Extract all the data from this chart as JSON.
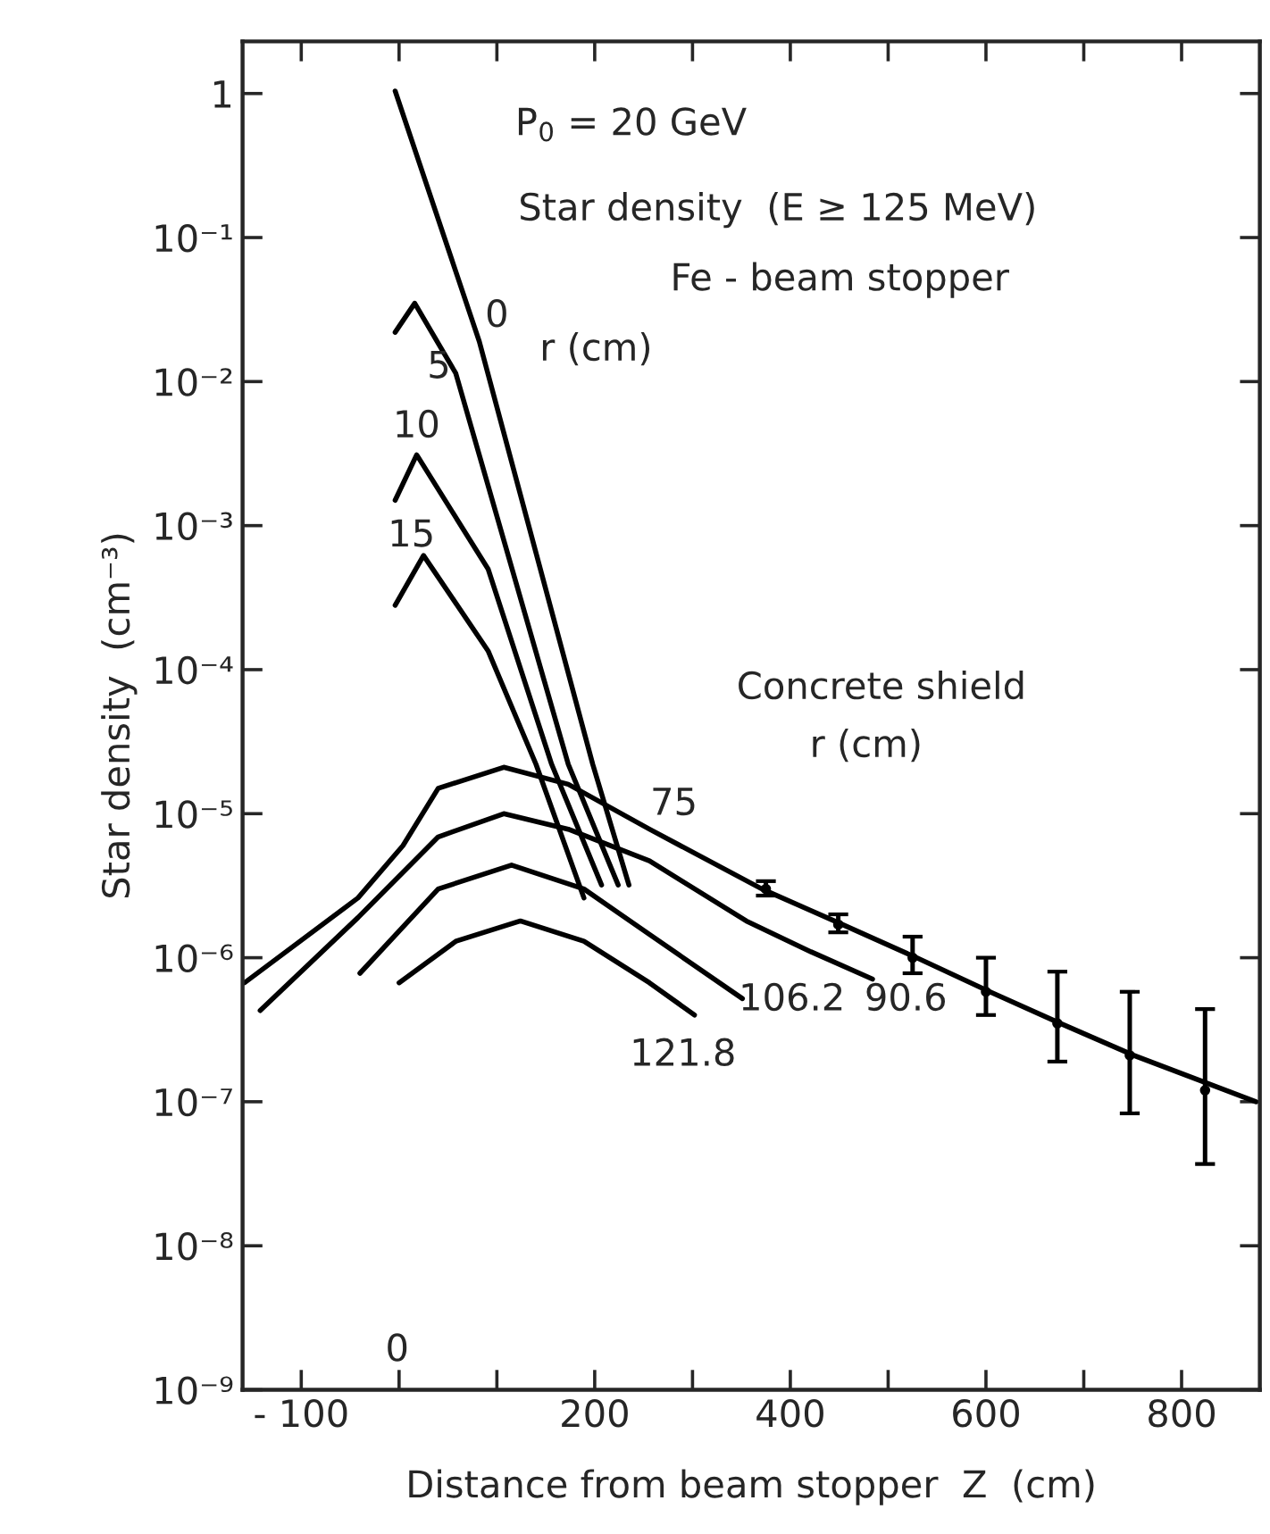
{
  "chart_data": {
    "type": "line",
    "xlabel": "Distance from beam stopper  Z  (cm)",
    "ylabel": "Star density  (cm⁻³)",
    "log": "y",
    "grid": false,
    "marker": "none",
    "line_style": "solid",
    "xlim": [
      -160,
      880
    ],
    "ylim": [
      1e-09,
      2.3
    ],
    "xticks": [
      {
        "value": -100,
        "label": "- 100"
      },
      {
        "value": 0,
        "label": null
      },
      {
        "value": 100,
        "label": null
      },
      200,
      {
        "value": 300,
        "label": null
      },
      400,
      {
        "value": 500,
        "label": null
      },
      600,
      {
        "value": 700,
        "label": null
      },
      800
    ],
    "yticks": [
      {
        "value": 1e-09,
        "label": "10⁻⁹"
      },
      {
        "value": 1e-08,
        "label": "10⁻⁸"
      },
      {
        "value": 1e-07,
        "label": "10⁻⁷"
      },
      {
        "value": 1e-06,
        "label": "10⁻⁶"
      },
      {
        "value": 1e-05,
        "label": "10⁻⁵"
      },
      {
        "value": 0.0001,
        "label": "10⁻⁴"
      },
      {
        "value": 0.001,
        "label": "10⁻³"
      },
      {
        "value": 0.01,
        "label": "10⁻²"
      },
      {
        "value": 0.1,
        "label": "10⁻¹"
      },
      {
        "value": 1,
        "label": "1"
      }
    ],
    "series": [
      {
        "color": "#000000",
        "x": [
          -4,
          82,
          198,
          235
        ],
        "values": [
          1.04,
          0.019,
          2.2e-05,
          3.2e-06
        ]
      },
      {
        "color": "#000000",
        "x": [
          -4,
          16,
          58,
          173,
          224
        ],
        "values": [
          0.022,
          0.035,
          0.0114,
          2.2e-05,
          3.2e-06
        ]
      },
      {
        "color": "#000000",
        "x": [
          -4,
          18,
          91,
          156,
          207
        ],
        "values": [
          0.0015,
          0.0031,
          0.0005,
          2.2e-05,
          3.2e-06
        ]
      },
      {
        "color": "#000000",
        "x": [
          -4,
          25,
          91,
          140,
          189
        ],
        "values": [
          0.00028,
          0.00062,
          0.000135,
          2.2e-05,
          2.6e-06
        ]
      },
      {
        "color": "#000000",
        "x": [
          -158,
          -42,
          4,
          40,
          107,
          173,
          256,
          371,
          445,
          529,
          604,
          676,
          751,
          876
        ],
        "values": [
          6.7e-07,
          2.6e-06,
          6e-06,
          1.5e-05,
          2.1e-05,
          1.6e-05,
          7.8e-06,
          3e-06,
          1.8e-06,
          1e-06,
          5.8e-07,
          3.5e-07,
          2.1e-07,
          1e-07
        ]
      },
      {
        "color": "#000000",
        "x": [
          -142,
          -42,
          40,
          107,
          173,
          256,
          355,
          421,
          484
        ],
        "values": [
          4.3e-07,
          1.9e-06,
          6.9e-06,
          1e-05,
          7.8e-06,
          4.7e-06,
          1.8e-06,
          1.1e-06,
          7.1e-07
        ]
      },
      {
        "color": "#000000",
        "x": [
          -40,
          40,
          115,
          189,
          256,
          351
        ],
        "values": [
          7.8e-07,
          3e-06,
          4.4e-06,
          3e-06,
          1.45e-06,
          5.2e-07
        ]
      },
      {
        "color": "#000000",
        "x": [
          0,
          58,
          124,
          189,
          256,
          302
        ],
        "values": [
          6.7e-07,
          1.3e-06,
          1.8e-06,
          1.3e-06,
          6.7e-07,
          4e-07
        ]
      },
      {
        "type": "scatter",
        "color": "#000000",
        "marker": "circle",
        "x": [
          375,
          449,
          525,
          600,
          673,
          747,
          824
        ],
        "values": [
          3e-06,
          1.7e-06,
          1e-06,
          5.8e-07,
          3.5e-07,
          2.1e-07,
          1.2e-07
        ],
        "errors": [
          [
            2.7e-06,
            3.4e-06
          ],
          [
            1.5e-06,
            2e-06
          ],
          [
            7.8e-07,
            1.4e-06
          ],
          [
            4e-07,
            1e-06
          ],
          [
            1.9e-07,
            8e-07
          ],
          [
            8.3e-08,
            5.8e-07
          ],
          [
            3.7e-08,
            4.4e-07
          ]
        ]
      }
    ],
    "annotations": [
      "P$_{0}$ = 20 GeV",
      "Star density  (E ≥ 125 MeV)",
      "Fe - beam stopper",
      "r (cm)",
      "Concrete shield",
      "r (cm)",
      "0",
      "5",
      "10",
      "15",
      "75",
      "106.2",
      "90.6",
      "121.8",
      "0"
    ]
  }
}
